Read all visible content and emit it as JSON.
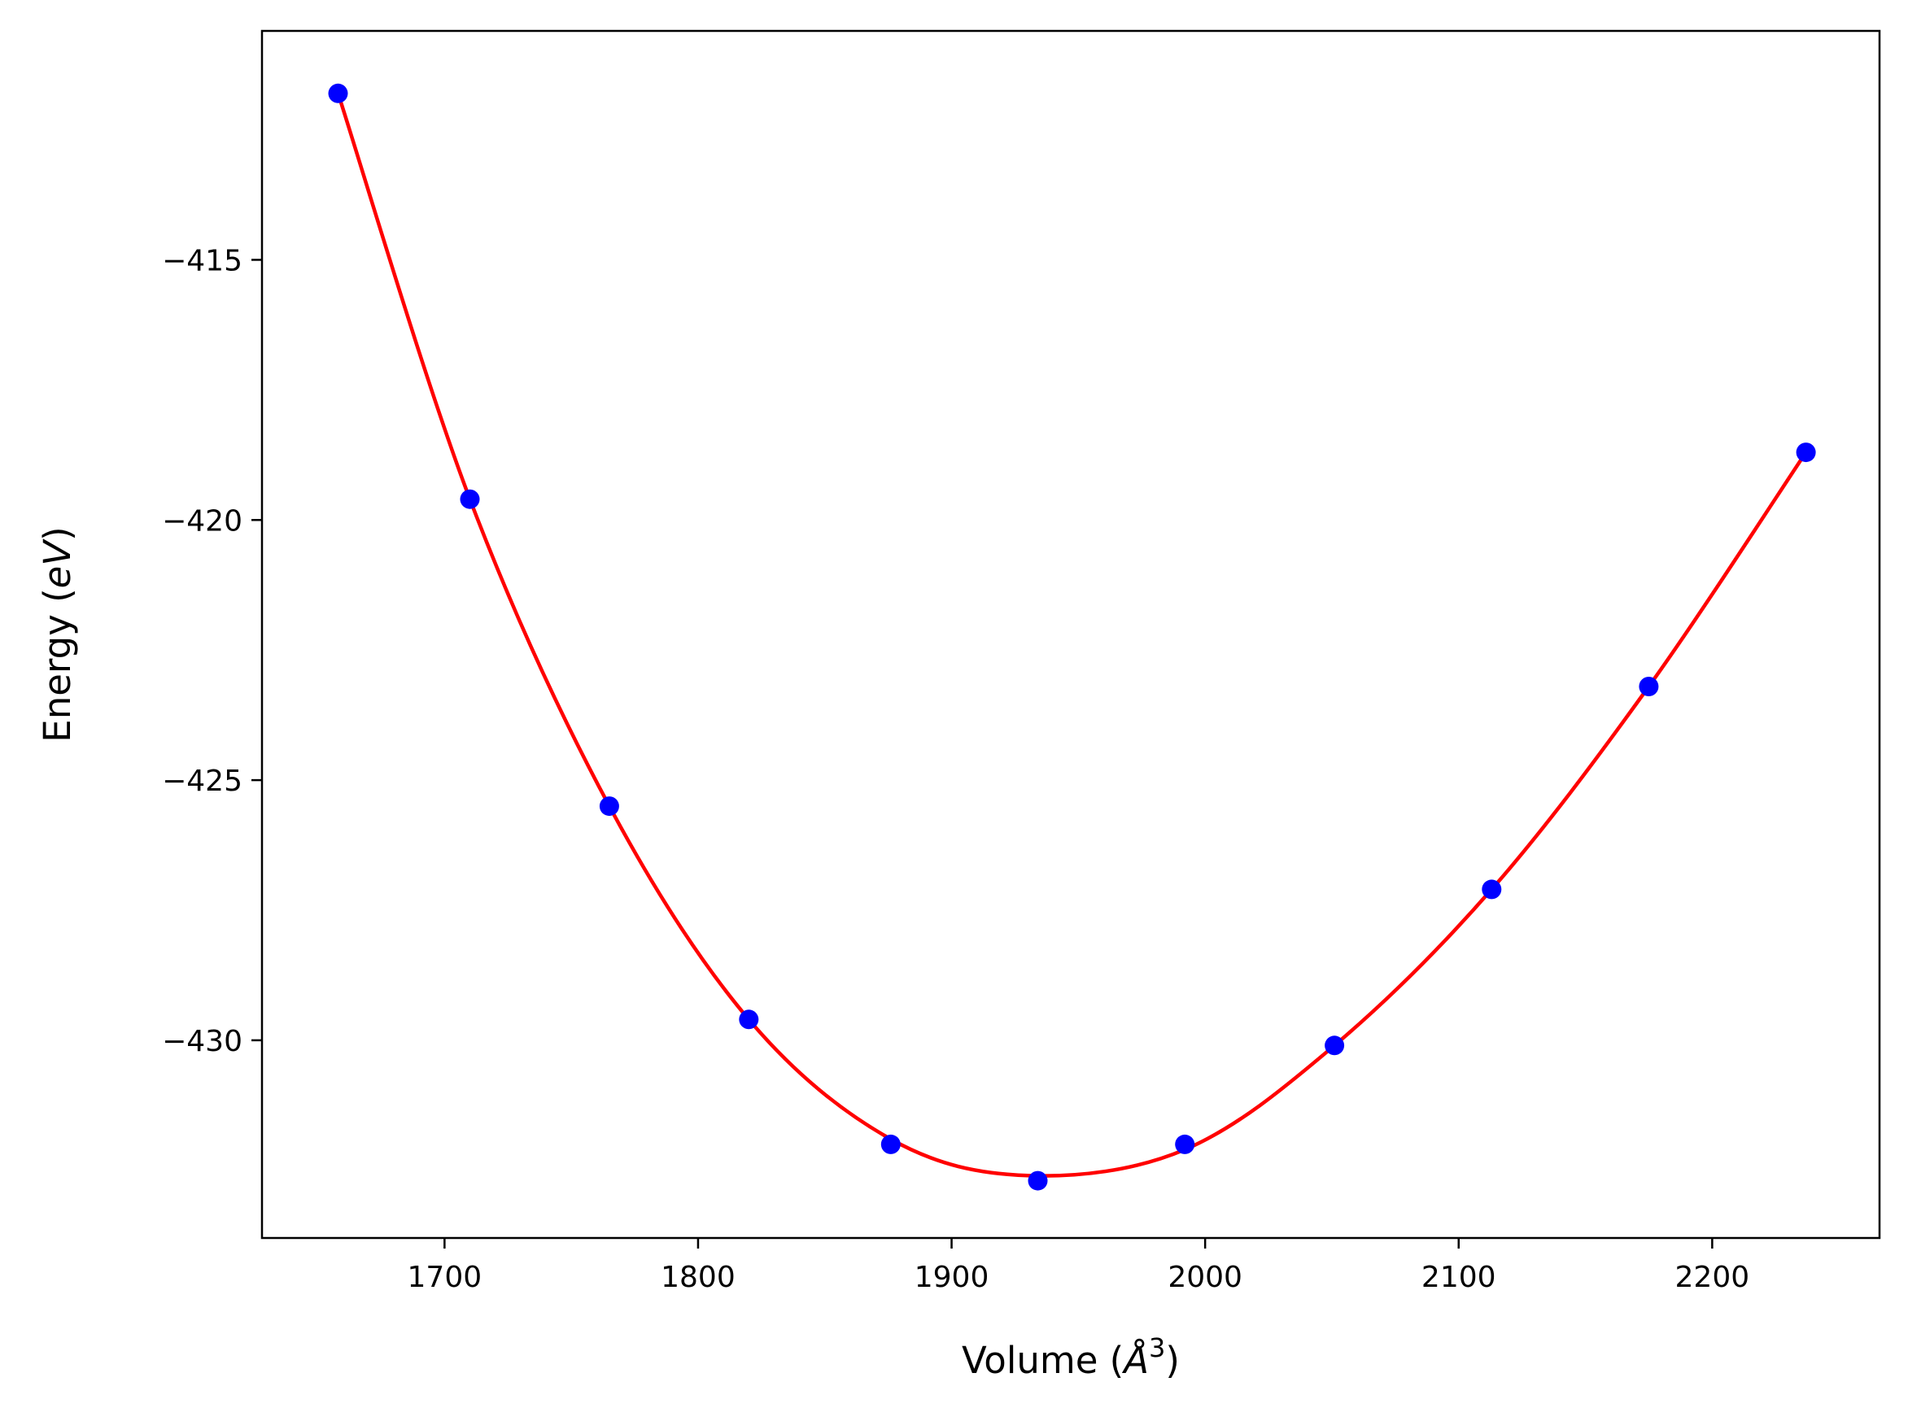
{
  "chart_data": {
    "type": "scatter",
    "title": "",
    "xlabel_main": "Volume (",
    "xlabel_italic": "Å",
    "xlabel_sup": "3",
    "xlabel_close": ")",
    "ylabel_main": "Energy (",
    "ylabel_italic": "eV",
    "ylabel_close": ")",
    "xlim": [
      1628,
      2266
    ],
    "ylim": [
      -433.8,
      -410.6
    ],
    "xticks": [
      1700,
      1800,
      1900,
      2000,
      2100,
      2200
    ],
    "xtick_labels": [
      "1700",
      "1800",
      "1900",
      "2000",
      "2100",
      "2200"
    ],
    "yticks": [
      -415,
      -420,
      -425,
      -430
    ],
    "ytick_labels": [
      "−415",
      "−420",
      "−425",
      "−430"
    ],
    "grid": false,
    "series": [
      {
        "kind": "points",
        "color": "#0000ff",
        "x": [
          1658,
          1710,
          1765,
          1820,
          1876,
          1934,
          1992,
          2051,
          2113,
          2175,
          2237
        ],
        "y": [
          -411.8,
          -419.6,
          -425.5,
          -429.6,
          -432.0,
          -432.7,
          -432.0,
          -430.1,
          -427.1,
          -423.2,
          -418.7
        ]
      },
      {
        "kind": "fit-curve",
        "color": "#ff0000",
        "x": [
          1658,
          1710,
          1765,
          1820,
          1876,
          1930,
          1992,
          2051,
          2113,
          2175,
          2237
        ],
        "y": [
          -411.8,
          -419.6,
          -425.5,
          -429.6,
          -431.9,
          -432.6,
          -432.1,
          -430.1,
          -427.1,
          -423.2,
          -418.7
        ]
      }
    ]
  }
}
